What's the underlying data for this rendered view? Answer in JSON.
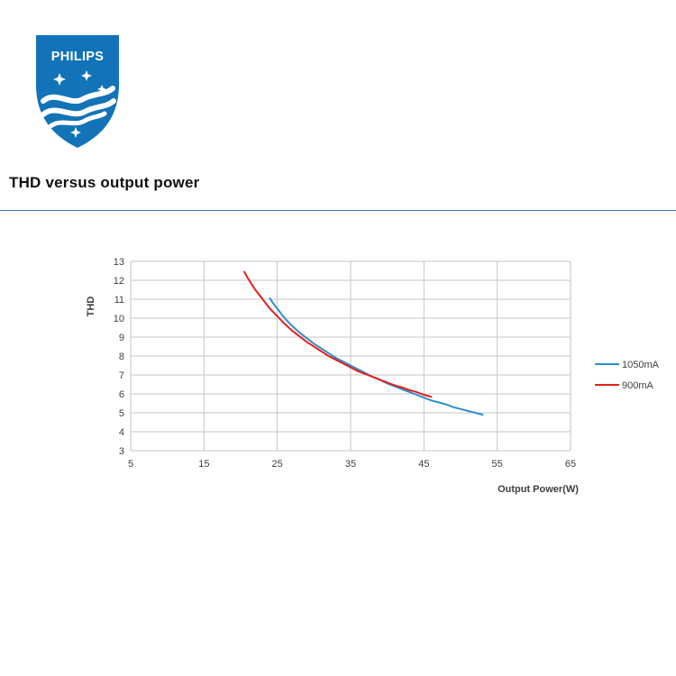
{
  "logo": {
    "brand_text": "PHILIPS",
    "shield_color": "#1273b8"
  },
  "header": {
    "title": "THD versus output power",
    "divider_color": "#3a7abd"
  },
  "chart_data": {
    "type": "line",
    "title": "THD versus output power",
    "xlabel": "Output Power(W)",
    "ylabel": "THD",
    "xlim": [
      5,
      65
    ],
    "ylim": [
      3,
      13
    ],
    "xticks": [
      5,
      15,
      25,
      35,
      45,
      55,
      65
    ],
    "yticks": [
      3,
      4,
      5,
      6,
      7,
      8,
      9,
      10,
      11,
      12,
      13
    ],
    "grid": true,
    "grid_color": "#c6c6c6",
    "tick_color": "#3f3f3f",
    "legend_position": "right",
    "series": [
      {
        "name": "1050mA",
        "color": "#2f8fca",
        "points": [
          [
            24,
            11.05
          ],
          [
            24.5,
            10.75
          ],
          [
            25,
            10.5
          ],
          [
            26,
            10.0
          ],
          [
            27,
            9.6
          ],
          [
            28,
            9.25
          ],
          [
            29,
            8.95
          ],
          [
            30,
            8.65
          ],
          [
            31,
            8.4
          ],
          [
            32,
            8.15
          ],
          [
            33,
            7.9
          ],
          [
            34,
            7.7
          ],
          [
            35,
            7.5
          ],
          [
            36,
            7.3
          ],
          [
            37,
            7.1
          ],
          [
            38,
            6.9
          ],
          [
            39,
            6.75
          ],
          [
            40,
            6.55
          ],
          [
            41,
            6.4
          ],
          [
            42,
            6.25
          ],
          [
            43,
            6.1
          ],
          [
            44,
            5.95
          ],
          [
            45,
            5.8
          ],
          [
            46,
            5.65
          ],
          [
            47,
            5.55
          ],
          [
            48,
            5.45
          ],
          [
            49,
            5.3
          ],
          [
            50,
            5.2
          ],
          [
            51,
            5.1
          ],
          [
            52,
            5.0
          ],
          [
            53,
            4.9
          ]
        ]
      },
      {
        "name": "900mA",
        "color": "#e41f1f",
        "points": [
          [
            20.5,
            12.45
          ],
          [
            21,
            12.1
          ],
          [
            22,
            11.5
          ],
          [
            23,
            11.0
          ],
          [
            24,
            10.5
          ],
          [
            25,
            10.1
          ],
          [
            26,
            9.7
          ],
          [
            27,
            9.35
          ],
          [
            28,
            9.05
          ],
          [
            29,
            8.75
          ],
          [
            30,
            8.5
          ],
          [
            31,
            8.25
          ],
          [
            32,
            8.0
          ],
          [
            33,
            7.8
          ],
          [
            34,
            7.6
          ],
          [
            35,
            7.4
          ],
          [
            36,
            7.2
          ],
          [
            37,
            7.05
          ],
          [
            38,
            6.9
          ],
          [
            39,
            6.75
          ],
          [
            40,
            6.6
          ],
          [
            41,
            6.45
          ],
          [
            42,
            6.35
          ],
          [
            43,
            6.2
          ],
          [
            44,
            6.1
          ],
          [
            45,
            5.95
          ],
          [
            46,
            5.85
          ]
        ]
      }
    ]
  }
}
